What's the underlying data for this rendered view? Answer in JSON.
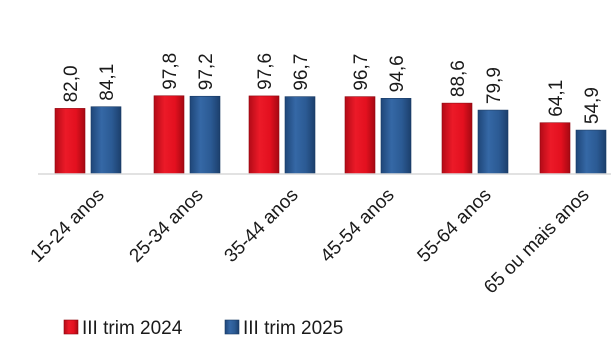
{
  "chart_data": {
    "type": "bar",
    "title": "",
    "xlabel": "",
    "ylabel": "",
    "ylim": [
      0,
      150
    ],
    "grid": false,
    "legend": "bottom-left",
    "categories": [
      "15-24 anos",
      "25-34 anos",
      "35-44 anos",
      "45-54 anos",
      "55-64 anos",
      "65 ou mais anos"
    ],
    "series": [
      {
        "name": "III trim 2024",
        "color": "#e3101f",
        "values": [
          82.0,
          97.8,
          97.6,
          96.7,
          88.6,
          64.1
        ],
        "labels": [
          "82,0",
          "97,8",
          "97,6",
          "96,7",
          "88,6",
          "64,1"
        ]
      },
      {
        "name": "III trim 2025",
        "color": "#2b5a93",
        "values": [
          84.1,
          97.2,
          96.7,
          94.6,
          79.9,
          54.9
        ],
        "labels": [
          "84,1",
          "97,2",
          "96,7",
          "94,6",
          "79,9",
          "54,9"
        ]
      }
    ]
  }
}
